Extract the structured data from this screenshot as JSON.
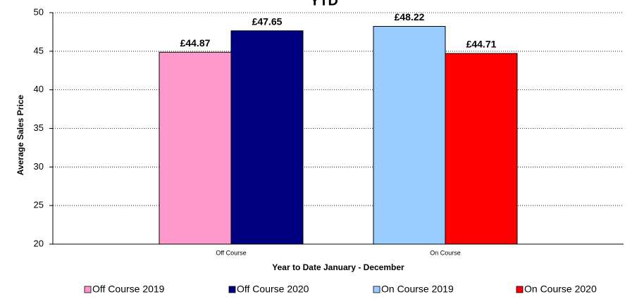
{
  "chart_data": {
    "type": "bar",
    "title": "YTD",
    "x_label": "Year to Date January - December",
    "y_label": "Average Sales Price",
    "categories": [
      "Off Course",
      "On Course"
    ],
    "series": [
      {
        "name": "Off Course 2019",
        "color": "#ff99cc",
        "values": [
          44.87,
          null
        ],
        "value_labels": [
          "£44.87",
          null
        ]
      },
      {
        "name": "Off Course 2020",
        "color": "#000080",
        "values": [
          47.65,
          null
        ],
        "value_labels": [
          "£47.65",
          null
        ]
      },
      {
        "name": "On Course 2019",
        "color": "#99ccff",
        "values": [
          null,
          48.22
        ],
        "value_labels": [
          null,
          "£48.22"
        ]
      },
      {
        "name": "On Course 2020",
        "color": "#ff0000",
        "values": [
          null,
          44.71
        ],
        "value_labels": [
          null,
          "£44.71"
        ]
      }
    ],
    "ylim": [
      20,
      50
    ],
    "yticks": [
      20,
      25,
      30,
      35,
      40,
      45,
      50
    ],
    "grid": true,
    "legend": "bottom"
  }
}
